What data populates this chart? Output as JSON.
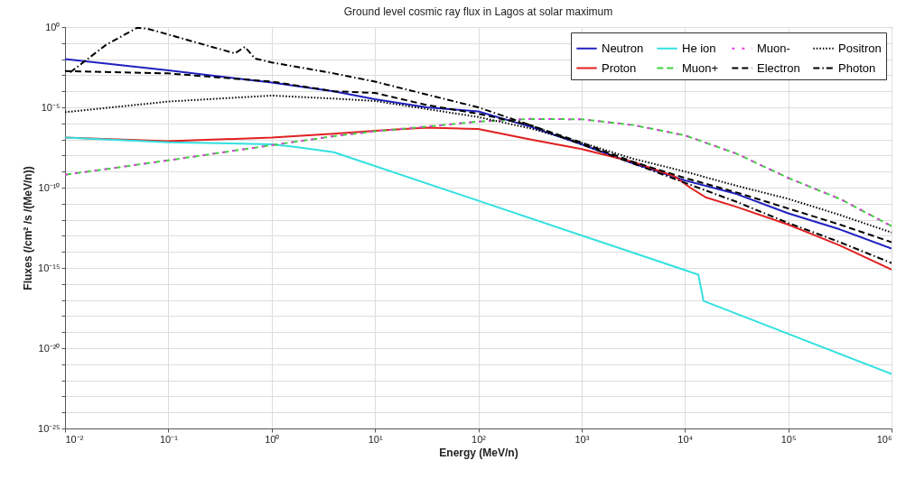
{
  "chart_data": {
    "type": "line",
    "title": "Ground level cosmic ray flux in Lagos at solar maximum",
    "xlabel": "Energy (MeV/n)",
    "ylabel": "Fluxes (/cm² /s /(MeV/n))",
    "log": "xy",
    "grid": true,
    "legend": "top right",
    "xlim": [
      0.01,
      1000000
    ],
    "ylim": [
      1e-25,
      1
    ],
    "xticks": [
      {
        "value": 0.01,
        "label": "10⁻²"
      },
      {
        "value": 0.1,
        "label": "10⁻¹"
      },
      {
        "value": 1,
        "label": "10⁰"
      },
      {
        "value": 10,
        "label": "10¹"
      },
      {
        "value": 100,
        "label": "10²"
      },
      {
        "value": 1000,
        "label": "10³"
      },
      {
        "value": 10000,
        "label": "10⁴"
      },
      {
        "value": 100000,
        "label": "10⁵"
      },
      {
        "value": 1000000,
        "label": "10⁶"
      }
    ],
    "yticks": [
      {
        "value": 1e-25,
        "label": "10⁻²⁵"
      },
      {
        "value": 1e-24,
        "label": null
      },
      {
        "value": 1e-23,
        "label": null
      },
      {
        "value": 1e-22,
        "label": null
      },
      {
        "value": 1e-21,
        "label": null
      },
      {
        "value": 1e-20,
        "label": "10⁻²⁰"
      },
      {
        "value": 1e-19,
        "label": null
      },
      {
        "value": 1e-18,
        "label": null
      },
      {
        "value": 1e-17,
        "label": null
      },
      {
        "value": 1e-16,
        "label": null
      },
      {
        "value": 1e-15,
        "label": "10⁻¹⁵"
      },
      {
        "value": 1e-14,
        "label": null
      },
      {
        "value": 1e-13,
        "label": null
      },
      {
        "value": 1e-12,
        "label": null
      },
      {
        "value": 1e-11,
        "label": null
      },
      {
        "value": 1e-10,
        "label": "10⁻¹⁰"
      },
      {
        "value": 1e-09,
        "label": null
      },
      {
        "value": 1e-08,
        "label": null
      },
      {
        "value": 1e-07,
        "label": null
      },
      {
        "value": 1e-06,
        "label": null
      },
      {
        "value": 1e-05,
        "label": "10⁻⁵"
      },
      {
        "value": 0.0001,
        "label": null
      },
      {
        "value": 0.001,
        "label": null
      },
      {
        "value": 0.01,
        "label": null
      },
      {
        "value": 0.1,
        "label": null
      },
      {
        "value": 1,
        "label": "10⁰"
      }
    ],
    "series": [
      {
        "name": "Neutron",
        "color": "#2020c0",
        "line_style": "solid",
        "x": [
          0.01,
          0.1,
          1,
          4,
          10,
          31.6,
          100,
          316,
          1000,
          3162,
          10000,
          31623,
          100000,
          316228,
          1000000
        ],
        "values": [
          0.01,
          0.002,
          0.00035,
          0.0001,
          3.2e-05,
          1e-05,
          5.6e-06,
          6.3e-07,
          5e-08,
          3.2e-09,
          2.8e-10,
          4e-11,
          2.5e-12,
          2.5e-13,
          1.6e-14
        ]
      },
      {
        "name": "Proton",
        "color": "#e02020",
        "line_style": "solid",
        "x": [
          0.01,
          0.1,
          1,
          4,
          10,
          31.6,
          100,
          316,
          1000,
          3162,
          7943,
          11220,
          15849,
          31623,
          100000,
          316228,
          1000000
        ],
        "values": [
          1.3e-07,
          7.9e-08,
          1.3e-07,
          2.3e-07,
          3.5e-07,
          5.4e-07,
          4.5e-07,
          1e-07,
          2.5e-08,
          4e-09,
          5e-10,
          1e-10,
          2.5e-11,
          6.3e-12,
          5e-13,
          2.5e-14,
          7.9e-16
        ]
      },
      {
        "name": "He ion",
        "color": "#33e0e0",
        "line_style": "solid",
        "x": [
          0.01,
          0.1,
          1,
          1.66,
          4,
          13490,
          15136,
          1000000
        ],
        "values": [
          1.3e-07,
          6.6e-08,
          5e-08,
          3.5e-08,
          1.6e-08,
          3.8e-16,
          8.7e-18,
          2.5e-22
        ]
      },
      {
        "name": "Muon+",
        "color": "#40d040",
        "line_style": "dashed",
        "x": [
          0.01,
          0.1,
          1,
          4,
          10,
          31.6,
          100,
          316,
          1000,
          3162,
          10000,
          31623,
          100000,
          316228,
          1000000
        ],
        "values": [
          6.3e-10,
          5e-09,
          4.4e-08,
          1.6e-07,
          3.2e-07,
          6.3e-07,
          1.3e-06,
          1.9e-06,
          1.8e-06,
          7.9e-07,
          1.8e-07,
          1.3e-08,
          4e-10,
          2e-11,
          4e-13
        ]
      },
      {
        "name": "Muon-",
        "color": "#e040e0",
        "line_style": "dashed",
        "x": [
          0.01,
          0.1,
          1,
          4,
          10,
          31.6,
          100,
          316,
          1000,
          3162,
          10000,
          31623,
          100000,
          316228,
          1000000
        ],
        "values": [
          6.3e-10,
          5e-09,
          4.4e-08,
          1.6e-07,
          3.2e-07,
          6.3e-07,
          1.3e-06,
          1.9e-06,
          1.8e-06,
          7.9e-07,
          1.8e-07,
          1.3e-08,
          4e-10,
          2e-11,
          4e-13
        ]
      },
      {
        "name": "Electron",
        "color": "#000000",
        "line_style": "dashed",
        "x": [
          0.01,
          0.1,
          1,
          4,
          10,
          31.6,
          100,
          316,
          1000,
          3162,
          10000,
          31623,
          100000,
          316228,
          1000000
        ],
        "values": [
          0.0018,
          0.0013,
          0.0004,
          0.0001,
          7.9e-05,
          1.4e-05,
          4e-06,
          7.9e-07,
          6.3e-08,
          4e-09,
          4e-10,
          5e-11,
          5e-12,
          5e-13,
          4e-14
        ]
      },
      {
        "name": "Positron",
        "color": "#000000",
        "line_style": "dotted",
        "x": [
          0.01,
          0.1,
          1,
          4,
          10,
          31.6,
          100,
          316,
          1000,
          3162,
          10000,
          31623,
          100000,
          316228,
          1000000
        ],
        "values": [
          5e-06,
          2.3e-05,
          5.4e-05,
          3.5e-05,
          2.5e-05,
          7.9e-06,
          2.5e-06,
          5e-07,
          6.3e-08,
          6.3e-09,
          1e-09,
          1.3e-10,
          2e-11,
          2e-12,
          1.6e-13
        ]
      },
      {
        "name": "Photon",
        "color": "#000000",
        "line_style": "dashdot",
        "x": [
          0.0112,
          0.025,
          0.05,
          0.063,
          0.44,
          0.55,
          0.69,
          1,
          4,
          10,
          31.6,
          100,
          316,
          1000,
          3162,
          10000,
          31623,
          100000,
          316228,
          1000000
        ],
        "values": [
          0.0015,
          0.079,
          0.91,
          0.79,
          0.023,
          0.058,
          0.011,
          0.0063,
          0.0013,
          0.0004,
          6.3e-05,
          1e-05,
          7.9e-07,
          5e-08,
          3.2e-09,
          2e-10,
          1.3e-11,
          6.3e-13,
          4e-14,
          2e-15
        ]
      }
    ]
  }
}
